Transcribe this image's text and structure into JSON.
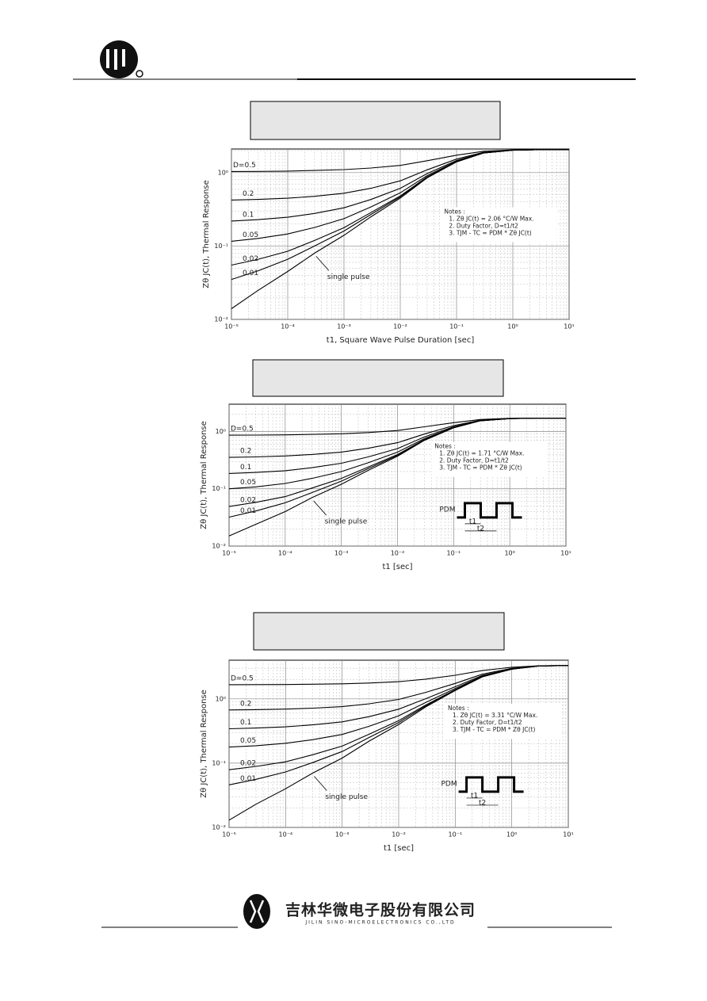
{
  "chart_data": [
    {
      "type": "line",
      "ylabel": "Zθ JC(t), Thermal Response",
      "xlabel": "t1, Square Wave Pulse Duration [sec]",
      "x": [
        1e-05,
        3e-05,
        0.0001,
        0.0003,
        0.001,
        0.003,
        0.01,
        0.03,
        0.1,
        0.3,
        1,
        3,
        10
      ],
      "xlim": [
        1e-05,
        10
      ],
      "ylim": [
        0.01,
        2.1
      ],
      "log_x": true,
      "log_y": true,
      "grid": true,
      "minor_grid": true,
      "xticks": [
        {
          "value": 1e-05,
          "label": "10⁻⁵"
        },
        {
          "value": 0.0001,
          "label": "10⁻⁴"
        },
        {
          "value": 0.001,
          "label": "10⁻³"
        },
        {
          "value": 0.01,
          "label": "10⁻²"
        },
        {
          "value": 0.1,
          "label": "10⁻¹"
        },
        {
          "value": 1,
          "label": "10⁰"
        },
        {
          "value": 10,
          "label": "10¹"
        }
      ],
      "yticks": [
        {
          "value": 0.01,
          "label": "10⁻²"
        },
        {
          "value": 0.1,
          "label": "10⁻¹"
        },
        {
          "value": 1,
          "label": "10⁰"
        }
      ],
      "series": [
        {
          "name": "D=0.5",
          "color": "#000000",
          "values": [
            1.037,
            1.04,
            1.05,
            1.07,
            1.1,
            1.155,
            1.255,
            1.455,
            1.73,
            1.955,
            2.045,
            2.06,
            2.06
          ]
        },
        {
          "name": "0.2",
          "color": "#000000",
          "values": [
            0.423,
            0.432,
            0.448,
            0.476,
            0.524,
            0.612,
            0.772,
            1.092,
            1.532,
            1.892,
            2.028,
            2.06,
            2.06
          ]
        },
        {
          "name": "0.1",
          "color": "#000000",
          "values": [
            0.219,
            0.229,
            0.247,
            0.278,
            0.332,
            0.431,
            0.611,
            0.971,
            1.466,
            1.871,
            2.024,
            2.06,
            2.06
          ]
        },
        {
          "name": "0.05",
          "color": "#000000",
          "values": [
            0.116,
            0.127,
            0.146,
            0.179,
            0.236,
            0.341,
            0.531,
            0.911,
            1.433,
            1.861,
            2.022,
            2.06,
            2.06
          ]
        },
        {
          "name": "0.02",
          "color": "#000000",
          "values": [
            0.055,
            0.066,
            0.085,
            0.119,
            0.178,
            0.286,
            0.482,
            0.874,
            1.413,
            1.854,
            2.021,
            2.06,
            2.06
          ]
        },
        {
          "name": "0.01",
          "color": "#000000",
          "values": [
            0.035,
            0.046,
            0.066,
            0.1,
            0.16,
            0.269,
            0.467,
            0.863,
            1.407,
            1.852,
            2.021,
            2.06,
            2.06
          ]
        },
        {
          "name": "single pulse",
          "color": "#000000",
          "values": [
            0.014,
            0.025,
            0.045,
            0.08,
            0.14,
            0.25,
            0.45,
            0.85,
            1.4,
            1.85,
            2.02,
            2.06,
            2.06
          ]
        }
      ],
      "notes": [
        "Notes :",
        "1. Zθ JC(t) = 2.06 °C/W Max.",
        "2. Duty Factor, D=t1/t2",
        "3. TJM - TC = PDM * Zθ JC(t)"
      ]
    },
    {
      "type": "line",
      "ylabel": "Zθ JC(t), Thermal Response",
      "xlabel": "t1 [sec]",
      "x": [
        1e-05,
        3e-05,
        0.0001,
        0.0003,
        0.001,
        0.003,
        0.01,
        0.03,
        0.1,
        0.3,
        1,
        3,
        10
      ],
      "xlim": [
        1e-05,
        10
      ],
      "ylim": [
        0.01,
        3
      ],
      "log_x": true,
      "log_y": true,
      "grid": true,
      "minor_grid": true,
      "xticks": [
        {
          "value": 1e-05,
          "label": "10⁻⁵"
        },
        {
          "value": 0.0001,
          "label": "10⁻⁴"
        },
        {
          "value": 0.001,
          "label": "10⁻³"
        },
        {
          "value": 0.01,
          "label": "10⁻²"
        },
        {
          "value": 0.1,
          "label": "10⁻¹"
        },
        {
          "value": 1,
          "label": "10⁰"
        },
        {
          "value": 10,
          "label": "10¹"
        }
      ],
      "yticks": [
        {
          "value": 0.01,
          "label": "10⁻²"
        },
        {
          "value": 0.1,
          "label": "10⁻¹"
        },
        {
          "value": 1,
          "label": "10⁰"
        }
      ],
      "series": [
        {
          "name": "D=0.5",
          "color": "#000000",
          "values": [
            0.863,
            0.867,
            0.875,
            0.89,
            0.915,
            0.96,
            1.04,
            1.21,
            1.43,
            1.62,
            1.7,
            1.71,
            1.71
          ]
        },
        {
          "name": "0.2",
          "color": "#000000",
          "values": [
            0.354,
            0.361,
            0.374,
            0.398,
            0.438,
            0.51,
            0.638,
            0.902,
            1.27,
            1.574,
            1.686,
            1.71,
            1.71
          ]
        },
        {
          "name": "0.1",
          "color": "#000000",
          "values": [
            0.185,
            0.193,
            0.207,
            0.234,
            0.279,
            0.36,
            0.504,
            0.801,
            1.215,
            1.557,
            1.683,
            1.71,
            1.71
          ]
        },
        {
          "name": "0.05",
          "color": "#000000",
          "values": [
            0.1,
            0.108,
            0.124,
            0.152,
            0.2,
            0.285,
            0.437,
            0.751,
            1.188,
            1.549,
            1.682,
            1.71,
            1.71
          ]
        },
        {
          "name": "0.02",
          "color": "#000000",
          "values": [
            0.049,
            0.058,
            0.073,
            0.103,
            0.152,
            0.24,
            0.397,
            0.72,
            1.171,
            1.543,
            1.68,
            1.71,
            1.71
          ]
        },
        {
          "name": "0.01",
          "color": "#000000",
          "values": [
            0.032,
            0.041,
            0.057,
            0.086,
            0.136,
            0.225,
            0.383,
            0.71,
            1.165,
            1.542,
            1.68,
            1.71,
            1.71
          ]
        },
        {
          "name": "single pulse",
          "color": "#000000",
          "values": [
            0.015,
            0.024,
            0.04,
            0.07,
            0.12,
            0.21,
            0.37,
            0.7,
            1.16,
            1.54,
            1.68,
            1.71,
            1.71
          ]
        }
      ],
      "notes": [
        "Notes :",
        "1. Zθ JC(t) = 1.71 °C/W Max.",
        "2. Duty Factor, D=t1/t2",
        "3. TJM - TC = PDM * Zθ JC(t)"
      ],
      "pulse_labels": [
        "PDM",
        "t1",
        "t2"
      ]
    },
    {
      "type": "line",
      "ylabel": "Zθ JC(t), Thermal Response",
      "xlabel": "t1 [sec]",
      "x": [
        1e-05,
        3e-05,
        0.0001,
        0.0003,
        0.001,
        0.003,
        0.01,
        0.03,
        0.1,
        0.3,
        1,
        3,
        10
      ],
      "xlim": [
        1e-05,
        10
      ],
      "ylim": [
        0.01,
        4
      ],
      "log_x": true,
      "log_y": true,
      "grid": true,
      "minor_grid": true,
      "xticks": [
        {
          "value": 1e-05,
          "label": "10⁻⁵"
        },
        {
          "value": 0.0001,
          "label": "10⁻⁴"
        },
        {
          "value": 0.001,
          "label": "10⁻³"
        },
        {
          "value": 0.01,
          "label": "10⁻²"
        },
        {
          "value": 0.1,
          "label": "10⁻¹"
        },
        {
          "value": 1,
          "label": "10⁰"
        },
        {
          "value": 10,
          "label": "10¹"
        }
      ],
      "yticks": [
        {
          "value": 0.01,
          "label": "10⁻²"
        },
        {
          "value": 0.1,
          "label": "10⁻¹"
        },
        {
          "value": 1,
          "label": "10⁰"
        }
      ],
      "series": [
        {
          "name": "D=0.5",
          "color": "#000000",
          "values": [
            1.662,
            1.667,
            1.675,
            1.69,
            1.715,
            1.765,
            1.855,
            2.03,
            2.33,
            2.755,
            3.105,
            3.28,
            3.31
          ]
        },
        {
          "name": "0.2",
          "color": "#000000",
          "values": [
            0.672,
            0.68,
            0.694,
            0.718,
            0.758,
            0.838,
            0.982,
            1.262,
            1.742,
            2.422,
            2.982,
            3.262,
            3.31
          ]
        },
        {
          "name": "0.1",
          "color": "#000000",
          "values": [
            0.343,
            0.352,
            0.367,
            0.394,
            0.439,
            0.529,
            0.691,
            1.006,
            1.546,
            2.311,
            2.941,
            3.256,
            3.31
          ]
        },
        {
          "name": "0.05",
          "color": "#000000",
          "values": [
            0.178,
            0.187,
            0.204,
            0.232,
            0.28,
            0.375,
            0.546,
            0.878,
            1.448,
            2.256,
            2.921,
            3.253,
            3.31
          ]
        },
        {
          "name": "0.02",
          "color": "#000000",
          "values": [
            0.079,
            0.089,
            0.105,
            0.135,
            0.184,
            0.282,
            0.458,
            0.801,
            1.389,
            2.222,
            2.908,
            3.251,
            3.31
          ]
        },
        {
          "name": "0.01",
          "color": "#000000",
          "values": [
            0.046,
            0.056,
            0.073,
            0.102,
            0.152,
            0.251,
            0.429,
            0.776,
            1.37,
            2.211,
            2.904,
            3.25,
            3.31
          ]
        },
        {
          "name": "single pulse",
          "color": "#000000",
          "values": [
            0.013,
            0.023,
            0.04,
            0.07,
            0.12,
            0.22,
            0.4,
            0.75,
            1.35,
            2.2,
            2.9,
            3.25,
            3.31
          ]
        }
      ],
      "notes": [
        "Notes :",
        "1. Zθ JC(t) = 3.31 °C/W Max.",
        "2. Duty Factor, D=t1/t2",
        "3. TJM - TC = PDM * Zθ JC(t)"
      ],
      "pulse_labels": [
        "PDM",
        "t1",
        "t2"
      ]
    }
  ],
  "footer": {
    "company_cn": "吉林华微电子股份有限公司",
    "company_en": "JILIN SINO-MICROELECTRONICS CO.,LTD"
  }
}
